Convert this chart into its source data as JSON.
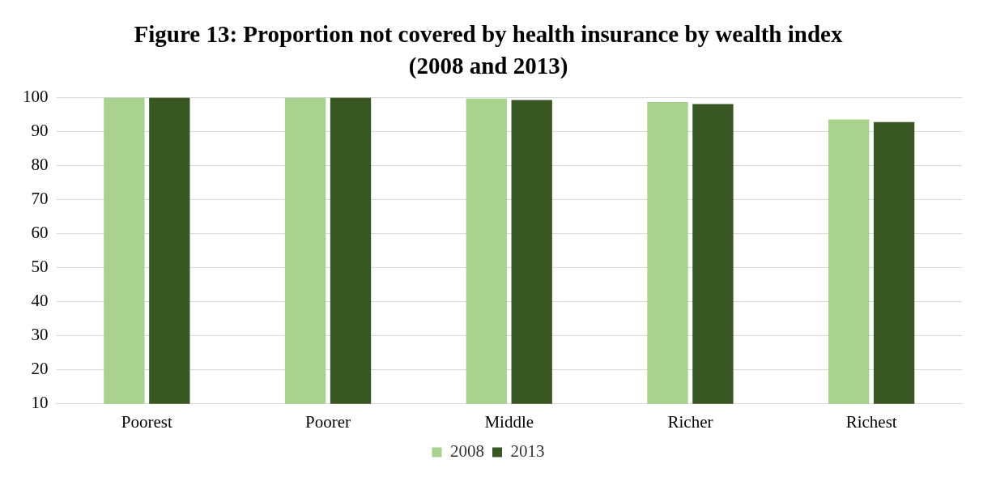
{
  "chart_data": {
    "type": "bar",
    "title": "Figure 13: Proportion not covered by health insurance by wealth index",
    "subtitle": "(2008 and 2013)",
    "categories": [
      "Poorest",
      "Poorer",
      "Middle",
      "Richer",
      "Richest"
    ],
    "series": [
      {
        "name": "2008",
        "color": "#a9d18e",
        "values": [
          100,
          100,
          99.7,
          98.7,
          93.6
        ]
      },
      {
        "name": "2013",
        "color": "#385723",
        "values": [
          100,
          100,
          99.3,
          98.1,
          92.8
        ]
      }
    ],
    "ylim": [
      10,
      100
    ],
    "yticks": [
      10,
      20,
      30,
      40,
      50,
      60,
      70,
      80,
      90,
      100
    ],
    "grid": "y",
    "legend": "bottom"
  }
}
